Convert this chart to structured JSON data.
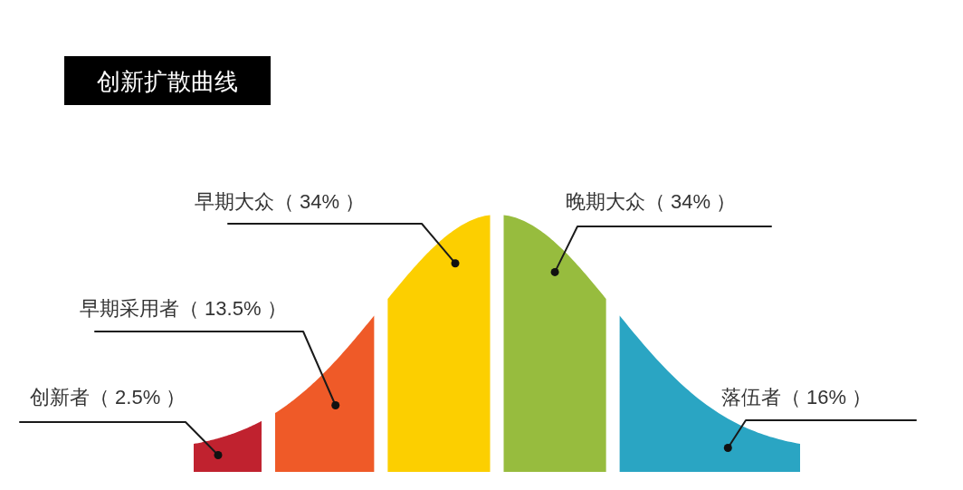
{
  "chart_data": {
    "type": "other",
    "title": "创新扩散曲线",
    "categories": [
      "创新者",
      "早期采用者",
      "早期大众",
      "晚期大众",
      "落伍者"
    ],
    "values": [
      2.5,
      13.5,
      34,
      34,
      16
    ],
    "value_labels": [
      "（ 2.5% ）",
      "（ 13.5% ）",
      "（ 34% ）",
      "（ 34% ）",
      "（ 16% ）"
    ],
    "colors": [
      "#c0222f",
      "#ef5a28",
      "#fccf00",
      "#97bc3e",
      "#2aa5c3"
    ]
  }
}
